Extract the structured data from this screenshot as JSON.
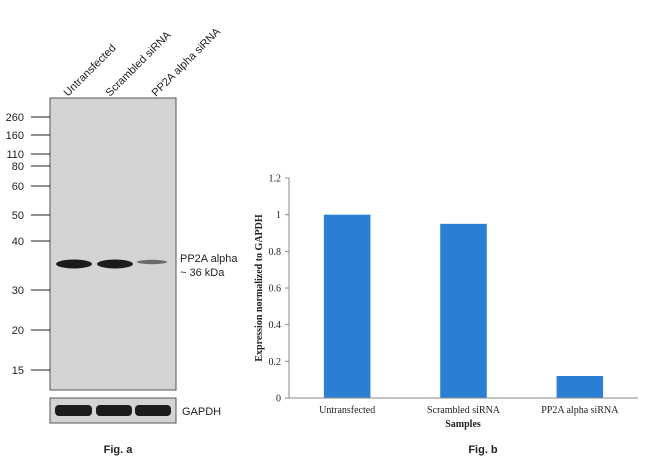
{
  "blot": {
    "lanes": [
      "Untransfected",
      "Scrambled siRNA",
      "PP2A alpha siRNA"
    ],
    "markers": [
      "260",
      "160",
      "110",
      "80",
      "60",
      "50",
      "40",
      "30",
      "20",
      "15"
    ],
    "band_label_line1": "PP2A alpha",
    "band_label_line2": "~ 36 kDa",
    "loading_label": "GAPDH",
    "figure_label": "Fig. a",
    "colors": {
      "membrane": "#d4d4d4",
      "band": "#1c1c1c"
    }
  },
  "chart_data": {
    "type": "bar",
    "categories": [
      "Untransfected",
      "Scrambled siRNA",
      "PP2A alpha siRNA"
    ],
    "values": [
      1.0,
      0.95,
      0.12
    ],
    "ylim": [
      0,
      1.2
    ],
    "yticks": [
      "0",
      "0.2",
      "0.4",
      "0.6",
      "0.8",
      "1",
      "1.2"
    ],
    "xlabel": "Samples",
    "ylabel": "Expression normalized to GAPDH",
    "figure_label": "Fig. b",
    "grid": false,
    "bar_color": "#2a7fd4"
  }
}
